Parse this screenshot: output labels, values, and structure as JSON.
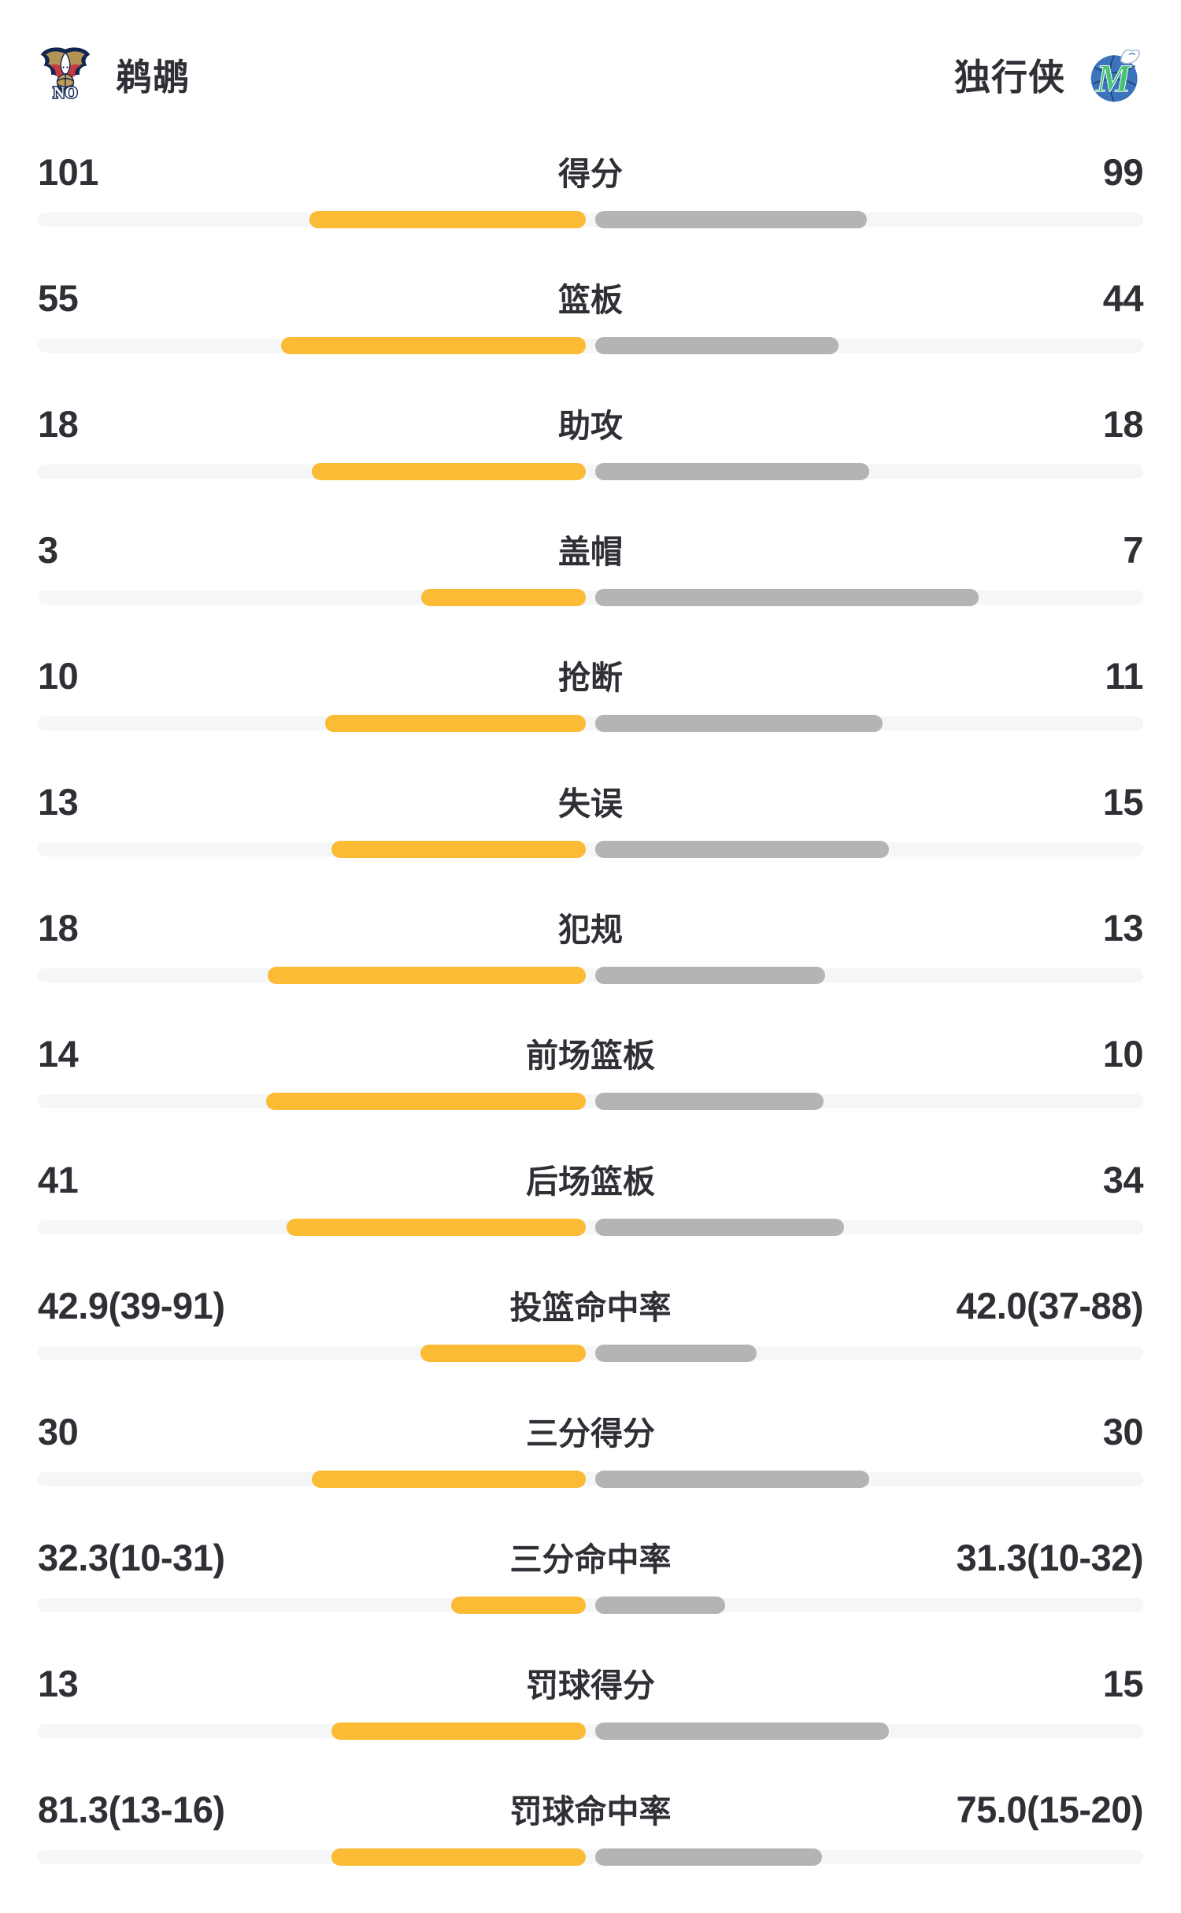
{
  "header": {
    "left_team": {
      "name": "鹈鹕",
      "logo": "pelicans-logo"
    },
    "right_team": {
      "name": "独行侠",
      "logo": "mavericks-logo"
    }
  },
  "colors": {
    "left_bar": "#FBBB34",
    "right_bar": "#B4B4B5",
    "bar_track": "#F5F6F8",
    "text": "#2F3036",
    "background": "#FFFFFF",
    "pelicans_navy": "#11264E",
    "pelicans_gold": "#B49357",
    "pelicans_red": "#C43A40",
    "mavs_blue": "#3B74BC",
    "mavs_green": "#46C273"
  },
  "chart_data": {
    "type": "bar",
    "subtype": "head-to-head-comparison",
    "description": "Team game stats, bars grow outward from center; left team yellow, right team gray",
    "left_team": "鹈鹕",
    "right_team": "独行侠",
    "legend_position": "none",
    "grid": false,
    "rows": [
      {
        "label": "得分",
        "left": "101",
        "right": "99",
        "left_value": 101,
        "right_value": 99,
        "format": "count"
      },
      {
        "label": "篮板",
        "left": "55",
        "right": "44",
        "left_value": 55,
        "right_value": 44,
        "format": "count"
      },
      {
        "label": "助攻",
        "left": "18",
        "right": "18",
        "left_value": 18,
        "right_value": 18,
        "format": "count"
      },
      {
        "label": "盖帽",
        "left": "3",
        "right": "7",
        "left_value": 3,
        "right_value": 7,
        "format": "count"
      },
      {
        "label": "抢断",
        "left": "10",
        "right": "11",
        "left_value": 10,
        "right_value": 11,
        "format": "count"
      },
      {
        "label": "失误",
        "left": "13",
        "right": "15",
        "left_value": 13,
        "right_value": 15,
        "format": "count"
      },
      {
        "label": "犯规",
        "left": "18",
        "right": "13",
        "left_value": 18,
        "right_value": 13,
        "format": "count"
      },
      {
        "label": "前场篮板",
        "left": "14",
        "right": "10",
        "left_value": 14,
        "right_value": 10,
        "format": "count"
      },
      {
        "label": "后场篮板",
        "left": "41",
        "right": "34",
        "left_value": 41,
        "right_value": 34,
        "format": "count"
      },
      {
        "label": "投篮命中率",
        "left": "42.9(39-91)",
        "right": "42.0(37-88)",
        "left_value": 42.9,
        "right_value": 42.0,
        "format": "percent"
      },
      {
        "label": "三分得分",
        "left": "30",
        "right": "30",
        "left_value": 30,
        "right_value": 30,
        "format": "count"
      },
      {
        "label": "三分命中率",
        "left": "32.3(10-31)",
        "right": "31.3(10-32)",
        "left_value": 32.3,
        "right_value": 31.3,
        "format": "percent"
      },
      {
        "label": "罚球得分",
        "left": "13",
        "right": "15",
        "left_value": 13,
        "right_value": 15,
        "format": "count"
      },
      {
        "label": "罚球命中率",
        "left": "81.3(13-16)",
        "right": "75.0(15-20)",
        "left_value": 81.3,
        "right_value": 75.0,
        "format": "percent"
      }
    ]
  }
}
